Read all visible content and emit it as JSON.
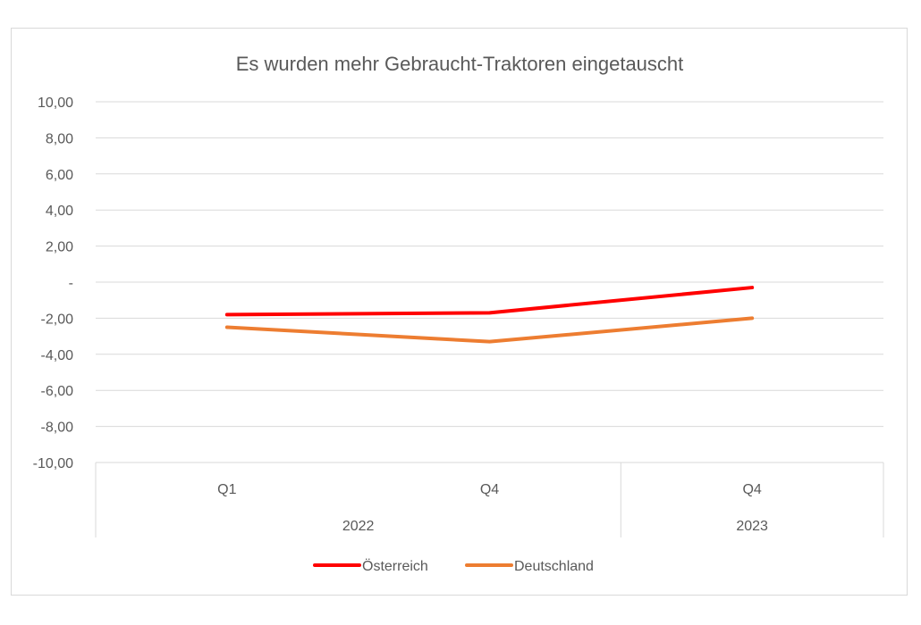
{
  "chart_data": {
    "type": "line",
    "title": "Es wurden mehr Gebraucht-Traktoren eingetauscht",
    "categories": [
      {
        "quarter": "Q1",
        "year": "2022"
      },
      {
        "quarter": "Q4",
        "year": "2022"
      },
      {
        "quarter": "Q4",
        "year": "2023"
      }
    ],
    "year_groups": [
      {
        "label": "2022",
        "span": 2
      },
      {
        "label": "2023",
        "span": 1
      }
    ],
    "series": [
      {
        "name": "Österreich",
        "values": [
          -1.8,
          -1.7,
          -0.3
        ],
        "color": "#ff0000"
      },
      {
        "name": "Deutschland",
        "values": [
          -2.5,
          -3.3,
          -2.0
        ],
        "color": "#ed7d31"
      }
    ],
    "ylim": [
      -10,
      10
    ],
    "yticks": [
      10,
      8,
      6,
      4,
      2,
      0,
      -2,
      -4,
      -6,
      -8,
      -10
    ],
    "ytick_labels": [
      "10,00",
      "8,00",
      "6,00",
      "4,00",
      "2,00",
      "-",
      "-2,00",
      "-4,00",
      "-6,00",
      "-8,00",
      "-10,00"
    ],
    "grid": true,
    "legend_position": "bottom",
    "xlabel": "",
    "ylabel": ""
  }
}
